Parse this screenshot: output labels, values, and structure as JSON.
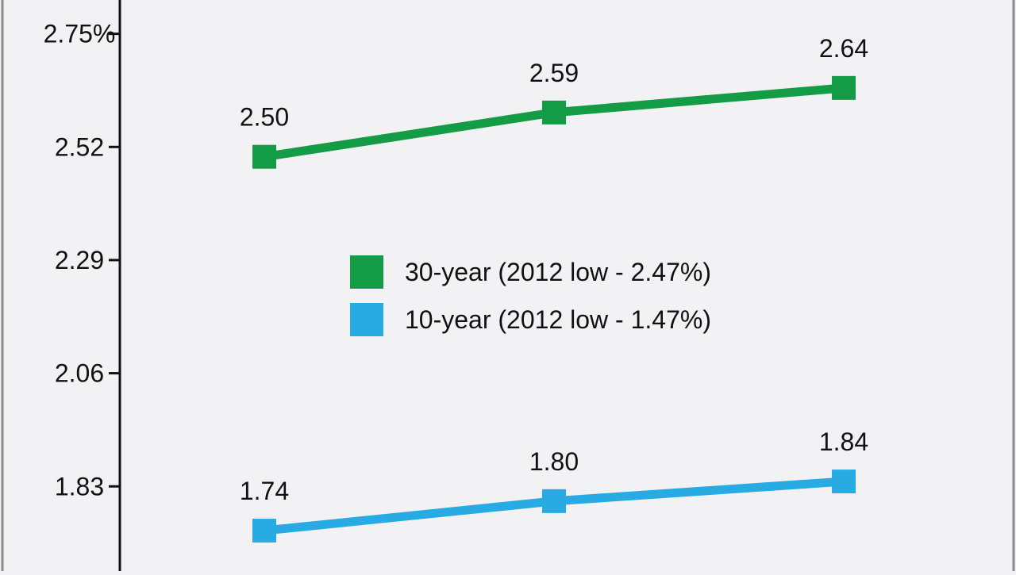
{
  "chart_data": {
    "type": "line",
    "categories": [
      "",
      "",
      ""
    ],
    "series": [
      {
        "name": "30-year (2012 low - 2.47%)",
        "values": [
          2.5,
          2.59,
          2.64
        ],
        "labels": [
          "2.50",
          "2.59",
          "2.64"
        ],
        "color": "#149b45"
      },
      {
        "name": "10-year (2012 low - 1.47%)",
        "values": [
          1.74,
          1.8,
          1.84
        ],
        "labels": [
          "1.74",
          "1.80",
          "1.84"
        ],
        "color": "#28abe2"
      }
    ],
    "yticks": [
      "1.83",
      "2.06",
      "2.29",
      "2.52",
      "2.75%"
    ],
    "ytick_values": [
      1.83,
      2.06,
      2.29,
      2.52,
      2.75
    ],
    "ylim": [
      1.645,
      2.83
    ],
    "title": "",
    "xlabel": "",
    "ylabel": "",
    "legend_position": "center",
    "grid": false
  },
  "colors": {
    "background": "#f2f2f4",
    "axis": "#111111",
    "border": "#8a8a8a"
  }
}
